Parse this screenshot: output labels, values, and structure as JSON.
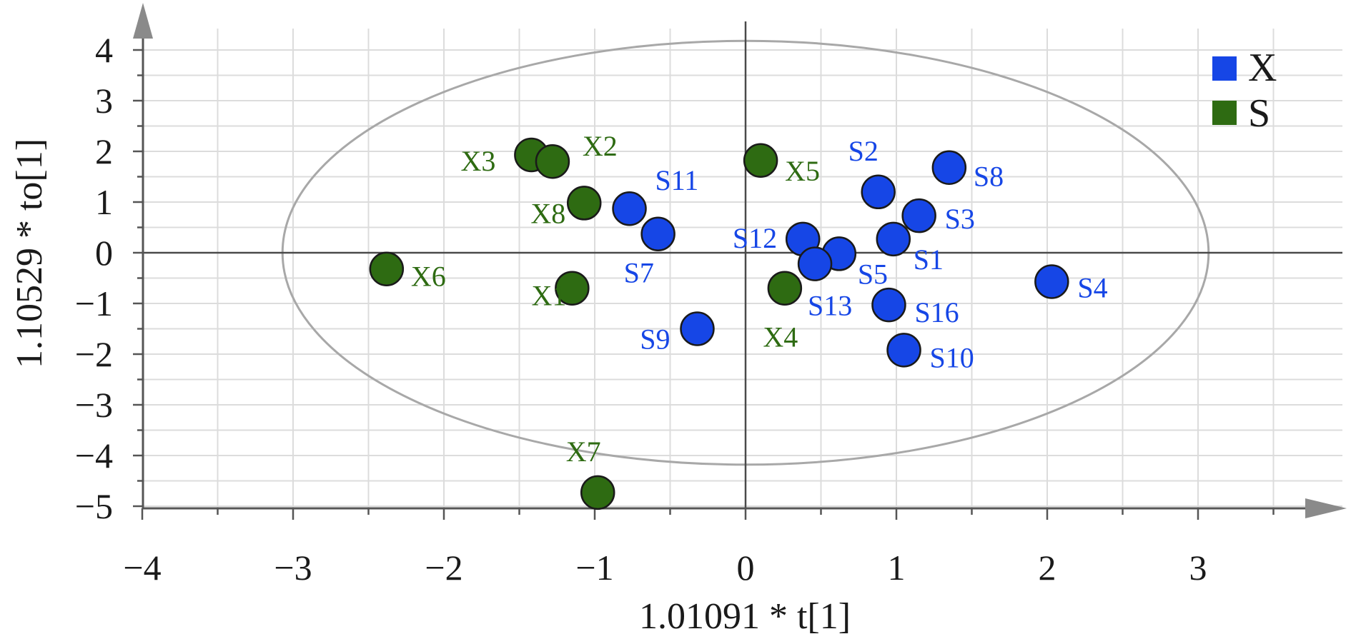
{
  "chart_data": {
    "type": "scatter",
    "xlabel": "1.01091 * t[1]",
    "ylabel": "1.10529 * to[1]",
    "xlim": [
      -4,
      4
    ],
    "ylim": [
      -5,
      4.5
    ],
    "x_ticks": [
      -4,
      -3,
      -2,
      -1,
      0,
      1,
      2,
      3
    ],
    "y_ticks": [
      4,
      3,
      2,
      1,
      0,
      -1,
      -2,
      -3,
      -4,
      -5
    ],
    "x_tick_labels": [
      "−4",
      "−3",
      "−2",
      "−1",
      "0",
      "1",
      "2",
      "3"
    ],
    "y_tick_labels": [
      "4",
      "3",
      "2",
      "1",
      "0",
      "−1",
      "−2",
      "−3",
      "−4",
      "−5"
    ],
    "grid": true,
    "legend_position": "top-right",
    "ellipse": {
      "rx": 3.07,
      "ry": 4.18,
      "cx": 0,
      "cy": 0
    },
    "series": [
      {
        "name": "X",
        "color": "#1646e6",
        "points": [
          {
            "label": "S2",
            "x": 0.88,
            "y": 1.2
          },
          {
            "label": "S8",
            "x": 1.35,
            "y": 1.68
          },
          {
            "label": "S11",
            "x": -0.77,
            "y": 0.87
          },
          {
            "label": "S3",
            "x": 1.15,
            "y": 0.73
          },
          {
            "label": "S7",
            "x": -0.58,
            "y": 0.37
          },
          {
            "label": "S12",
            "x": 0.38,
            "y": 0.27
          },
          {
            "label": "S1",
            "x": 0.98,
            "y": 0.27
          },
          {
            "label": "S5",
            "x": 0.62,
            "y": -0.02
          },
          {
            "label": "S13",
            "x": 0.46,
            "y": -0.22
          },
          {
            "label": "S4",
            "x": 2.03,
            "y": -0.57
          },
          {
            "label": "S16",
            "x": 0.95,
            "y": -1.03
          },
          {
            "label": "S9",
            "x": -0.32,
            "y": -1.5
          },
          {
            "label": "S10",
            "x": 1.05,
            "y": -1.92
          }
        ]
      },
      {
        "name": "S",
        "color": "#2e6b12",
        "points": [
          {
            "label": "X3",
            "x": -1.42,
            "y": 1.93
          },
          {
            "label": "X2",
            "x": -1.28,
            "y": 1.8
          },
          {
            "label": "X5",
            "x": 0.1,
            "y": 1.82
          },
          {
            "label": "X8",
            "x": -1.07,
            "y": 0.98
          },
          {
            "label": "X6",
            "x": -2.38,
            "y": -0.32
          },
          {
            "label": "X1",
            "x": -1.15,
            "y": -0.7
          },
          {
            "label": "X4",
            "x": 0.26,
            "y": -0.7
          },
          {
            "label": "X7",
            "x": -0.98,
            "y": -4.73
          }
        ]
      }
    ]
  }
}
